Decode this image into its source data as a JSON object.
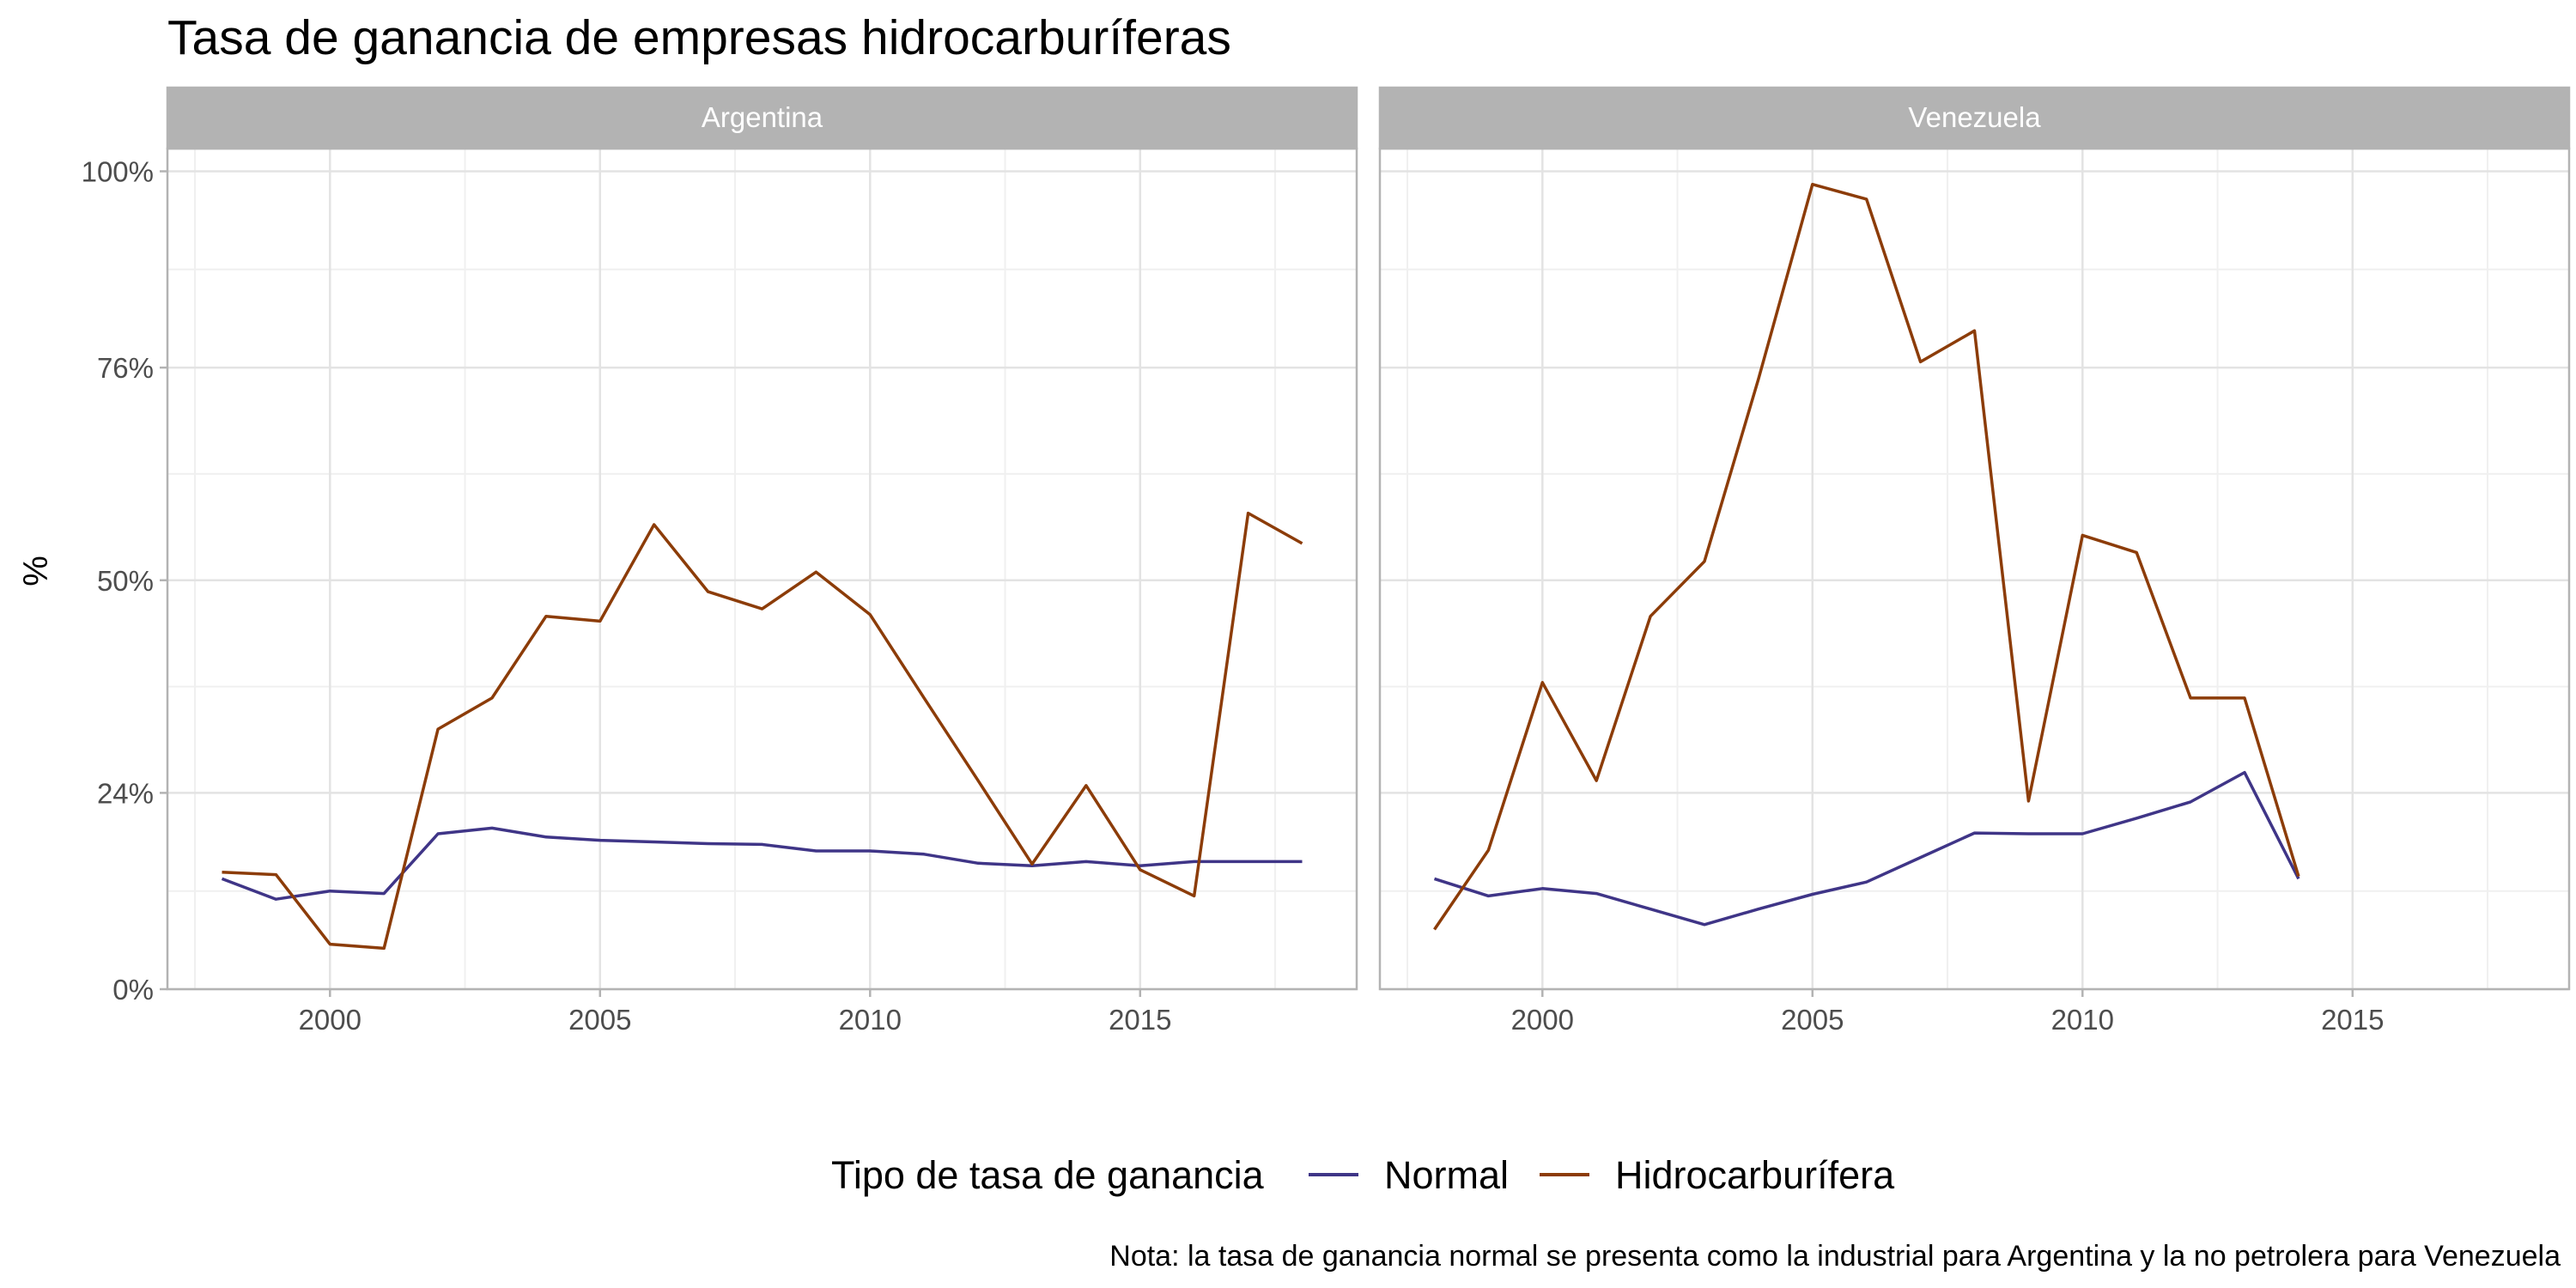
{
  "chart_data": {
    "type": "line",
    "title": "Tasa de ganancia de empresas hidrocarburíferas",
    "ylabel": "%",
    "xlabel": "",
    "ylim": [
      0,
      100
    ],
    "xlim": [
      1997.5,
      2018.5
    ],
    "y_ticks": [
      0,
      24,
      50,
      76,
      100
    ],
    "y_tick_labels": [
      "0%",
      "24%",
      "50%",
      "76%",
      "100%"
    ],
    "x_ticks": [
      2000,
      2005,
      2010,
      2015
    ],
    "x_tick_labels": [
      "2000",
      "2005",
      "2010",
      "2015"
    ],
    "grid": true,
    "legend_title": "Tipo de tasa de ganancia",
    "legend_position": "bottom",
    "caption": "Nota: la tasa de ganancia normal se presenta como la industrial para Argentina y la no petrolera para Venezuela",
    "colors": {
      "Normal": "#3f3587",
      "Hidrocarburífera": "#8c3c08"
    },
    "panels": [
      {
        "name": "Argentina",
        "series": [
          {
            "name": "Normal",
            "x": [
              1998,
              1999,
              2000,
              2001,
              2002,
              2003,
              2004,
              2005,
              2006,
              2007,
              2008,
              2009,
              2010,
              2011,
              2012,
              2013,
              2014,
              2015,
              2016,
              2017,
              2018
            ],
            "values": [
              13.5,
              11,
              12,
              11.7,
              19,
              19.7,
              18.6,
              18.2,
              18,
              17.8,
              17.7,
              16.9,
              16.9,
              16.5,
              15.4,
              15.1,
              15.6,
              15.1,
              15.6,
              15.6,
              15.6
            ]
          },
          {
            "name": "Hidrocarburífera",
            "x": [
              1998,
              1999,
              2000,
              2001,
              2002,
              2003,
              2004,
              2005,
              2006,
              2007,
              2008,
              2009,
              2010,
              2011,
              2012,
              2013,
              2014,
              2015,
              2016,
              2017,
              2018
            ],
            "values": [
              14.3,
              14,
              5.5,
              5,
              31.8,
              35.6,
              45.6,
              45,
              56.8,
              48.6,
              46.5,
              51,
              45.8,
              35.6,
              25.5,
              15.3,
              24.9,
              14.6,
              11.4,
              58.2,
              54.5
            ]
          }
        ]
      },
      {
        "name": "Venezuela",
        "series": [
          {
            "name": "Normal",
            "x": [
              1998,
              1999,
              2000,
              2001,
              2002,
              2003,
              2004,
              2005,
              2006,
              2007,
              2008,
              2009,
              2010,
              2011,
              2012,
              2013,
              2014
            ],
            "values": [
              13.5,
              11.4,
              12.3,
              11.7,
              9.8,
              7.9,
              9.8,
              11.6,
              13.1,
              16.1,
              19.1,
              19,
              19,
              20.9,
              22.9,
              26.5,
              13.5
            ]
          },
          {
            "name": "Hidrocarburífera",
            "x": [
              1998,
              1999,
              2000,
              2001,
              2002,
              2003,
              2004,
              2005,
              2006,
              2007,
              2008,
              2009,
              2010,
              2011,
              2012,
              2013,
              2014
            ],
            "values": [
              7.3,
              17,
              37.5,
              25.5,
              45.6,
              52.3,
              74.6,
              98.4,
              96.6,
              76.7,
              80.5,
              23,
              55.5,
              53.4,
              35.6,
              35.6,
              13.8
            ]
          }
        ]
      }
    ]
  }
}
